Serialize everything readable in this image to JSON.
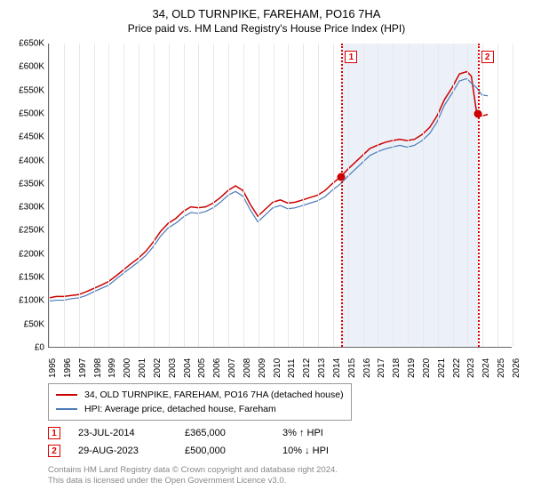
{
  "title_line1": "34, OLD TURNPIKE, FAREHAM, PO16 7HA",
  "title_line2": "Price paid vs. HM Land Registry's House Price Index (HPI)",
  "chart": {
    "type": "line",
    "background_color": "#ffffff",
    "grid_color": "#e8e8e8",
    "axis_color": "#666666",
    "shade_color": "rgba(180,200,230,0.25)",
    "shade_x_start": 2014.56,
    "shade_x_end": 2023.66,
    "xlim": [
      1995,
      2026
    ],
    "ylim": [
      0,
      650
    ],
    "y_ticks": [
      0,
      50,
      100,
      150,
      200,
      250,
      300,
      350,
      400,
      450,
      500,
      550,
      600,
      650
    ],
    "y_tick_labels": [
      "£0",
      "£50K",
      "£100K",
      "£150K",
      "£200K",
      "£250K",
      "£300K",
      "£350K",
      "£400K",
      "£450K",
      "£500K",
      "£550K",
      "£600K",
      "£650K"
    ],
    "x_ticks": [
      1995,
      1996,
      1997,
      1998,
      1999,
      2000,
      2001,
      2002,
      2003,
      2004,
      2005,
      2006,
      2007,
      2008,
      2009,
      2010,
      2011,
      2012,
      2013,
      2014,
      2015,
      2016,
      2017,
      2018,
      2019,
      2020,
      2021,
      2022,
      2023,
      2024,
      2025,
      2026
    ],
    "series": [
      {
        "name": "price_paid",
        "label": "34, OLD TURNPIKE, FAREHAM, PO16 7HA (detached house)",
        "color": "#cc0000",
        "line_width": 1.5,
        "data": [
          [
            1995,
            105
          ],
          [
            1995.5,
            108
          ],
          [
            1996,
            108
          ],
          [
            1996.5,
            110
          ],
          [
            1997,
            112
          ],
          [
            1997.5,
            118
          ],
          [
            1998,
            125
          ],
          [
            1998.5,
            132
          ],
          [
            1999,
            140
          ],
          [
            1999.5,
            152
          ],
          [
            2000,
            165
          ],
          [
            2000.5,
            178
          ],
          [
            2001,
            190
          ],
          [
            2001.5,
            205
          ],
          [
            2002,
            225
          ],
          [
            2002.5,
            248
          ],
          [
            2003,
            265
          ],
          [
            2003.5,
            275
          ],
          [
            2004,
            290
          ],
          [
            2004.5,
            300
          ],
          [
            2005,
            298
          ],
          [
            2005.5,
            300
          ],
          [
            2006,
            308
          ],
          [
            2006.5,
            320
          ],
          [
            2007,
            335
          ],
          [
            2007.5,
            345
          ],
          [
            2008,
            335
          ],
          [
            2008.5,
            305
          ],
          [
            2009,
            280
          ],
          [
            2009.5,
            295
          ],
          [
            2010,
            310
          ],
          [
            2010.5,
            315
          ],
          [
            2011,
            308
          ],
          [
            2011.5,
            310
          ],
          [
            2012,
            315
          ],
          [
            2012.5,
            320
          ],
          [
            2013,
            325
          ],
          [
            2013.5,
            335
          ],
          [
            2014,
            350
          ],
          [
            2014.56,
            365
          ],
          [
            2015,
            380
          ],
          [
            2015.5,
            395
          ],
          [
            2016,
            410
          ],
          [
            2016.5,
            425
          ],
          [
            2017,
            432
          ],
          [
            2017.5,
            438
          ],
          [
            2018,
            442
          ],
          [
            2018.5,
            445
          ],
          [
            2019,
            442
          ],
          [
            2019.5,
            445
          ],
          [
            2020,
            455
          ],
          [
            2020.5,
            470
          ],
          [
            2021,
            495
          ],
          [
            2021.5,
            530
          ],
          [
            2022,
            555
          ],
          [
            2022.5,
            585
          ],
          [
            2023,
            590
          ],
          [
            2023.3,
            580
          ],
          [
            2023.66,
            500
          ],
          [
            2024,
            495
          ],
          [
            2024.4,
            498
          ]
        ]
      },
      {
        "name": "hpi",
        "label": "HPI: Average price, detached house, Fareham",
        "color": "#4a7ab8",
        "line_width": 1.2,
        "data": [
          [
            1995,
            98
          ],
          [
            1995.5,
            100
          ],
          [
            1996,
            100
          ],
          [
            1996.5,
            103
          ],
          [
            1997,
            105
          ],
          [
            1997.5,
            110
          ],
          [
            1998,
            118
          ],
          [
            1998.5,
            125
          ],
          [
            1999,
            132
          ],
          [
            1999.5,
            145
          ],
          [
            2000,
            158
          ],
          [
            2000.5,
            170
          ],
          [
            2001,
            182
          ],
          [
            2001.5,
            196
          ],
          [
            2002,
            215
          ],
          [
            2002.5,
            238
          ],
          [
            2003,
            255
          ],
          [
            2003.5,
            265
          ],
          [
            2004,
            278
          ],
          [
            2004.5,
            288
          ],
          [
            2005,
            286
          ],
          [
            2005.5,
            290
          ],
          [
            2006,
            298
          ],
          [
            2006.5,
            310
          ],
          [
            2007,
            325
          ],
          [
            2007.5,
            333
          ],
          [
            2008,
            323
          ],
          [
            2008.5,
            293
          ],
          [
            2009,
            268
          ],
          [
            2009.5,
            283
          ],
          [
            2010,
            298
          ],
          [
            2010.5,
            303
          ],
          [
            2011,
            296
          ],
          [
            2011.5,
            298
          ],
          [
            2012,
            303
          ],
          [
            2012.5,
            308
          ],
          [
            2013,
            313
          ],
          [
            2013.5,
            322
          ],
          [
            2014,
            336
          ],
          [
            2014.56,
            350
          ],
          [
            2015,
            365
          ],
          [
            2015.5,
            380
          ],
          [
            2016,
            395
          ],
          [
            2016.5,
            410
          ],
          [
            2017,
            418
          ],
          [
            2017.5,
            424
          ],
          [
            2018,
            428
          ],
          [
            2018.5,
            432
          ],
          [
            2019,
            428
          ],
          [
            2019.5,
            432
          ],
          [
            2020,
            442
          ],
          [
            2020.5,
            457
          ],
          [
            2021,
            482
          ],
          [
            2021.5,
            518
          ],
          [
            2022,
            543
          ],
          [
            2022.5,
            570
          ],
          [
            2023,
            575
          ],
          [
            2023.3,
            565
          ],
          [
            2023.66,
            555
          ],
          [
            2024,
            540
          ],
          [
            2024.4,
            538
          ]
        ]
      }
    ],
    "sale_markers": [
      {
        "id": "1",
        "x": 2014.56,
        "dot_y": 365,
        "dot_color": "#cc0000",
        "box_top": 8
      },
      {
        "id": "2",
        "x": 2023.66,
        "dot_y": 500,
        "dot_color": "#cc0000",
        "box_top": 8
      }
    ]
  },
  "legend": {
    "items": [
      {
        "color": "#cc0000",
        "label": "34, OLD TURNPIKE, FAREHAM, PO16 7HA (detached house)"
      },
      {
        "color": "#4a7ab8",
        "label": "HPI: Average price, detached house, Fareham"
      }
    ]
  },
  "sales": [
    {
      "marker": "1",
      "date": "23-JUL-2014",
      "price": "£365,000",
      "diff": "3% ↑ HPI"
    },
    {
      "marker": "2",
      "date": "29-AUG-2023",
      "price": "£500,000",
      "diff": "10% ↓ HPI"
    }
  ],
  "footer_line1": "Contains HM Land Registry data © Crown copyright and database right 2024.",
  "footer_line2": "This data is licensed under the Open Government Licence v3.0."
}
